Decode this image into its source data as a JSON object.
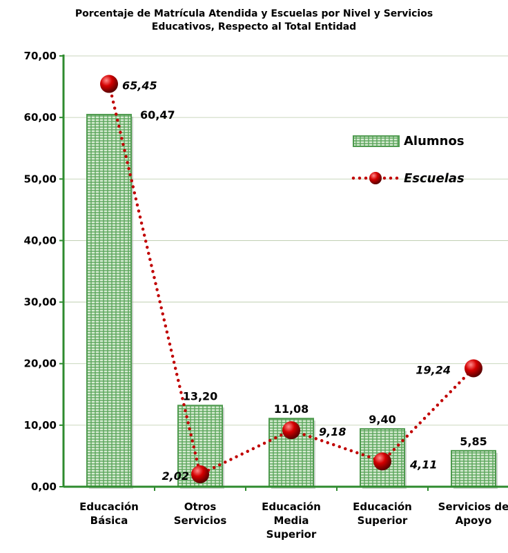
{
  "chart_data": {
    "type": "bar_line",
    "title": "Porcentaje de Matrícula Atendida y Escuelas por Nivel y Servicios\nEducativos, Respecto al Total Entidad",
    "categories": [
      "Educación\nBásica",
      "Otros\nServicios",
      "Educación\nMedia\nSuperior",
      "Educación\nSuperior",
      "Servicios de\nApoyo"
    ],
    "series": [
      {
        "name": "Alumnos",
        "type": "bar",
        "color": "#4e9a4e",
        "values": [
          60.47,
          13.2,
          11.08,
          9.4,
          5.85
        ],
        "value_labels": [
          "60,47",
          "13,20",
          "11,08",
          "9,40",
          "5,85"
        ]
      },
      {
        "name": "Escuelas",
        "type": "line",
        "color": "#c00000",
        "values": [
          65.45,
          2.02,
          9.18,
          4.11,
          19.24
        ],
        "value_labels": [
          "65,45",
          "2,02",
          "9,18",
          "4,11",
          "19,24"
        ]
      }
    ],
    "ylim": [
      0,
      70
    ],
    "yticks": [
      {
        "value": 0,
        "label": "0,00"
      },
      {
        "value": 10,
        "label": "10,00"
      },
      {
        "value": 20,
        "label": "20,00"
      },
      {
        "value": 30,
        "label": "30,00"
      },
      {
        "value": 40,
        "label": "40,00"
      },
      {
        "value": 50,
        "label": "50,00"
      },
      {
        "value": 60,
        "label": "60,00"
      },
      {
        "value": 70,
        "label": "70,00"
      }
    ],
    "grid": true
  }
}
